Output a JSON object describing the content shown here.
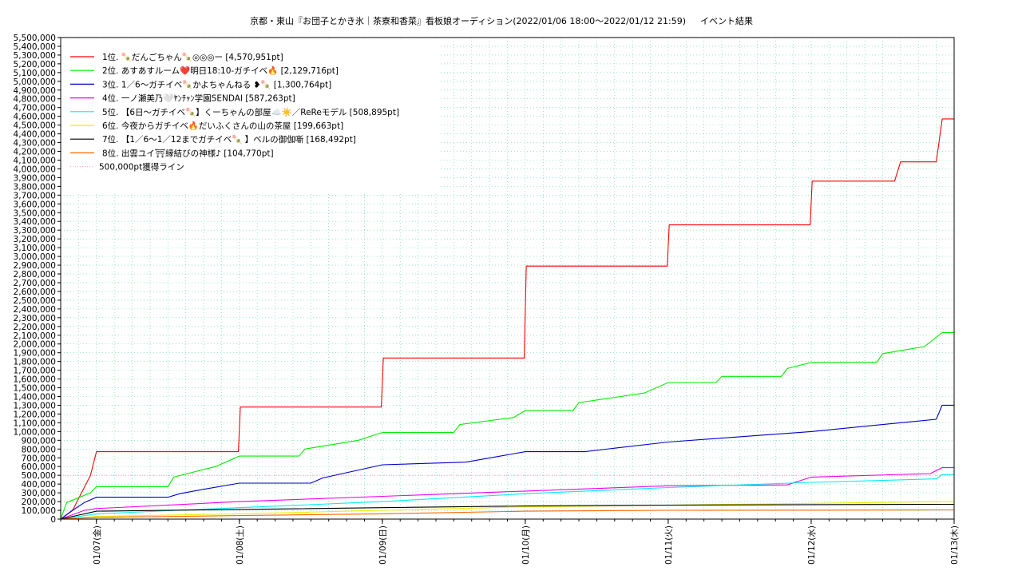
{
  "chart_data": {
    "type": "line",
    "title": "京都・東山『お団子とかき氷｜茶寮和香菜』看板娘オーディション(2022/01/06 18:00〜2022/01/12 21:59)",
    "subtitle": "イベント結果",
    "ylim": [
      0,
      5500000
    ],
    "y_tick_step": 100000,
    "xlim": [
      "2022-01-06 18:00",
      "2022-01-13 00:00"
    ],
    "x_tick_labels": [
      "01/07(金)",
      "01/08(土)",
      "01/09(日)",
      "01/10(月)",
      "01/11(火)",
      "01/12(水)",
      "01/13(木)"
    ],
    "x_tick_dates": [
      "2022-01-07 00:00",
      "2022-01-08 00:00",
      "2022-01-09 00:00",
      "2022-01-10 00:00",
      "2022-01-11 00:00",
      "2022-01-12 00:00",
      "2022-01-13 00:00"
    ],
    "grid": true,
    "legend_position": "top-left",
    "reference_line": {
      "label": "500,000pt獲得ライン",
      "value": 500000,
      "color": "#ff99cc"
    },
    "series": [
      {
        "name": "1位. 🍡だんごちゃん🍡◎◎◎ー [4,570,951pt]",
        "color": "#ff0000",
        "x": [
          "2022-01-06 18:00",
          "2022-01-06 20:00",
          "2022-01-06 23:00",
          "2022-01-07 00:00",
          "2022-01-07 23:50",
          "2022-01-08 00:10",
          "2022-01-08 23:50",
          "2022-01-09 00:10",
          "2022-01-09 23:50",
          "2022-01-10 00:10",
          "2022-01-10 23:50",
          "2022-01-11 00:10",
          "2022-01-11 23:50",
          "2022-01-12 00:10",
          "2022-01-12 14:00",
          "2022-01-12 15:00",
          "2022-01-12 21:00",
          "2022-01-12 22:00",
          "2022-01-13 00:00"
        ],
        "y": [
          0,
          100000,
          500000,
          770000,
          770000,
          1280000,
          1280000,
          1840000,
          1840000,
          2890000,
          2890000,
          3360000,
          3360000,
          3860000,
          3860000,
          4080000,
          4080000,
          4570951,
          4570951
        ]
      },
      {
        "name": "2位. あすあすルーム❤️明日18:10-ガチイベ🔥 [2,129,716pt]",
        "color": "#00ee00",
        "x": [
          "2022-01-06 18:00",
          "2022-01-06 19:00",
          "2022-01-06 23:00",
          "2022-01-07 00:00",
          "2022-01-07 12:00",
          "2022-01-07 13:00",
          "2022-01-07 20:00",
          "2022-01-08 00:00",
          "2022-01-08 10:00",
          "2022-01-08 11:00",
          "2022-01-08 20:00",
          "2022-01-09 00:00",
          "2022-01-09 12:00",
          "2022-01-09 13:00",
          "2022-01-09 22:00",
          "2022-01-10 00:00",
          "2022-01-10 08:00",
          "2022-01-10 09:00",
          "2022-01-10 20:00",
          "2022-01-11 00:00",
          "2022-01-11 08:00",
          "2022-01-11 09:00",
          "2022-01-11 19:00",
          "2022-01-11 20:00",
          "2022-01-12 00:00",
          "2022-01-12 11:00",
          "2022-01-12 12:00",
          "2022-01-12 19:00",
          "2022-01-12 21:59",
          "2022-01-13 00:00"
        ],
        "y": [
          0,
          190000,
          300000,
          370000,
          370000,
          480000,
          600000,
          720000,
          720000,
          800000,
          900000,
          990000,
          990000,
          1080000,
          1160000,
          1240000,
          1240000,
          1330000,
          1440000,
          1560000,
          1560000,
          1630000,
          1630000,
          1720000,
          1790000,
          1790000,
          1890000,
          1970000,
          2129716,
          2129716
        ]
      },
      {
        "name": "3位. 1／6〜ガチイベ🍡かよちゃんねる ❥🍡 [1,300,764pt]",
        "color": "#0000cc",
        "x": [
          "2022-01-06 18:00",
          "2022-01-06 20:00",
          "2022-01-06 22:00",
          "2022-01-07 00:00",
          "2022-01-07 12:00",
          "2022-01-07 14:00",
          "2022-01-07 18:00",
          "2022-01-08 00:00",
          "2022-01-08 12:00",
          "2022-01-08 14:00",
          "2022-01-09 00:00",
          "2022-01-09 14:00",
          "2022-01-10 00:00",
          "2022-01-10 10:00",
          "2022-01-10 15:00",
          "2022-01-11 00:00",
          "2022-01-11 12:00",
          "2022-01-12 00:00",
          "2022-01-12 12:00",
          "2022-01-12 21:00",
          "2022-01-12 21:59",
          "2022-01-13 00:00"
        ],
        "y": [
          0,
          100000,
          190000,
          250000,
          250000,
          290000,
          340000,
          410000,
          410000,
          470000,
          620000,
          650000,
          770000,
          770000,
          810000,
          880000,
          940000,
          1000000,
          1080000,
          1140000,
          1300764,
          1300764
        ]
      },
      {
        "name": "4位. 一ノ瀬美乃🤍ﾔﾝﾁｬﾝ学園SENDAI [587,263pt]",
        "color": "#ee00ee",
        "x": [
          "2022-01-06 18:00",
          "2022-01-06 22:00",
          "2022-01-07 00:00",
          "2022-01-08 00:00",
          "2022-01-09 00:00",
          "2022-01-10 00:00",
          "2022-01-11 00:00",
          "2022-01-11 20:00",
          "2022-01-12 00:00",
          "2022-01-12 20:00",
          "2022-01-12 21:59",
          "2022-01-13 00:00"
        ],
        "y": [
          0,
          100000,
          120000,
          200000,
          260000,
          320000,
          380000,
          390000,
          480000,
          520000,
          587263,
          587263
        ]
      },
      {
        "name": "5位. 【6日〜ガチイベ🍡】くーちゃんの部屋☁️☀️／ReReモデル [508,895pt]",
        "color": "#00eeee",
        "x": [
          "2022-01-06 18:00",
          "2022-01-07 00:00",
          "2022-01-08 00:00",
          "2022-01-09 00:00",
          "2022-01-10 00:00",
          "2022-01-11 00:00",
          "2022-01-12 00:00",
          "2022-01-12 21:00",
          "2022-01-12 21:59",
          "2022-01-13 00:00"
        ],
        "y": [
          0,
          60000,
          130000,
          200000,
          290000,
          360000,
          420000,
          460000,
          508895,
          508895
        ]
      },
      {
        "name": "6位. 今夜からガチイベ🔥だいふくさんの山の茶屋 [199,663pt]",
        "color": "#eeee00",
        "x": [
          "2022-01-06 18:00",
          "2022-01-07 00:00",
          "2022-01-08 00:00",
          "2022-01-09 00:00",
          "2022-01-10 00:00",
          "2022-01-11 00:00",
          "2022-01-12 00:00",
          "2022-01-12 21:59",
          "2022-01-13 00:00"
        ],
        "y": [
          0,
          30000,
          60000,
          100000,
          140000,
          160000,
          180000,
          199663,
          199663
        ]
      },
      {
        "name": "7位. 【1／6〜1／12までガチイベ🍡 】ベルの御伽噺 [168,492pt]",
        "color": "#000000",
        "x": [
          "2022-01-06 18:00",
          "2022-01-07 00:00",
          "2022-01-08 00:00",
          "2022-01-09 00:00",
          "2022-01-10 00:00",
          "2022-01-11 00:00",
          "2022-01-12 00:00",
          "2022-01-12 21:59",
          "2022-01-13 00:00"
        ],
        "y": [
          0,
          90000,
          110000,
          130000,
          150000,
          160000,
          165000,
          168492,
          168492
        ]
      },
      {
        "name": "8位. 出雲ユイ⛩縁結びの神様♪ [104,770pt]",
        "color": "#ff6600",
        "x": [
          "2022-01-06 18:00",
          "2022-01-07 00:00",
          "2022-01-08 00:00",
          "2022-01-09 00:00",
          "2022-01-10 00:00",
          "2022-01-11 00:00",
          "2022-01-12 00:00",
          "2022-01-12 21:59",
          "2022-01-13 00:00"
        ],
        "y": [
          0,
          20000,
          40000,
          60000,
          90000,
          100000,
          102000,
          104770,
          104770
        ]
      }
    ]
  }
}
